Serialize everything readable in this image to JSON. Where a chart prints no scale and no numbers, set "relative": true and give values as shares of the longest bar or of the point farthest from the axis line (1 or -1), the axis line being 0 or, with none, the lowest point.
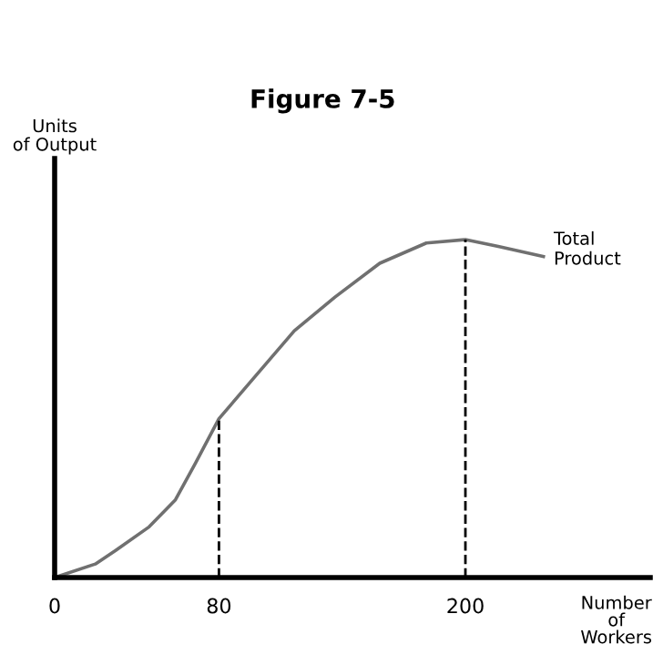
{
  "chart_data": {
    "type": "line",
    "title": "Figure 7-5",
    "xlabel": "Number\nof\nWorkers",
    "ylabel": "Units\nof Output",
    "relative": true,
    "xlim": [
      0,
      290
    ],
    "xticks": [
      0,
      80,
      200
    ],
    "series": [
      {
        "name": "Total\nProduct",
        "color": "#707070",
        "x": [
          0,
          19.8,
          29.7,
          46,
          58.8,
          68.7,
          80,
          96.9,
          116.7,
          136.5,
          158.3,
          181,
          200,
          216,
          238
        ],
        "values": [
          0,
          0.04,
          0.08,
          0.15,
          0.23,
          0.34,
          0.47,
          0.59,
          0.73,
          0.83,
          0.93,
          0.99,
          1,
          0.98,
          0.95
        ]
      }
    ],
    "ref_lines": [
      {
        "axis": "x",
        "value": 80,
        "line_style": "dashed",
        "color": "#000000"
      },
      {
        "axis": "x",
        "value": 200,
        "line_style": "dashed",
        "color": "#000000"
      }
    ],
    "grid": false,
    "legend": false,
    "marker": "none",
    "line_style": "solid"
  }
}
